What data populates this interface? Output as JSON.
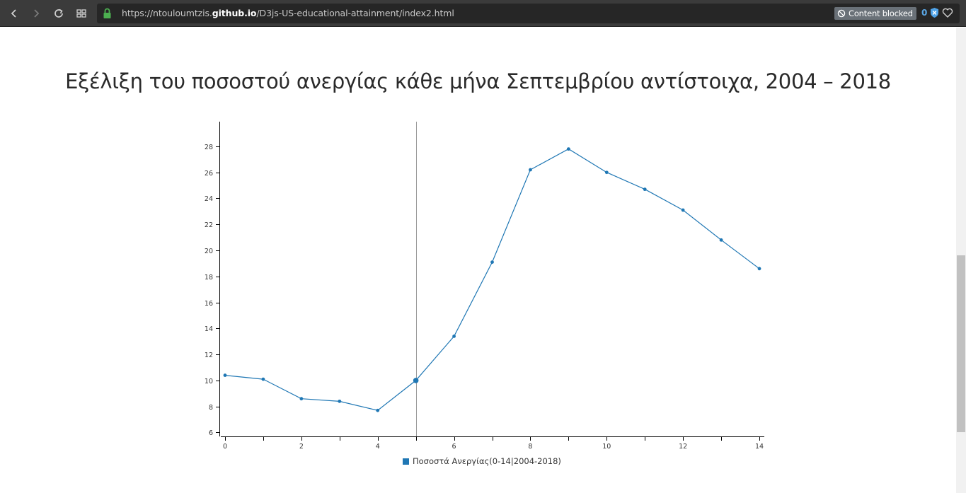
{
  "browser": {
    "url_prefix": "https://ntouloumtzis.",
    "url_host": "github.io",
    "url_path": "/D3js-US-educational-attainment/index2.html",
    "content_blocked_label": "Content blocked",
    "blocked_count": "0",
    "icons": [
      "back-icon",
      "forward-icon",
      "reload-icon",
      "speed-dial-icon",
      "lock-icon",
      "block-icon",
      "shield-icon",
      "heart-icon"
    ]
  },
  "page": {
    "title": "Εξέλιξη του ποσοστού ανεργίας κάθε μήνα Σεπτεμβρίου αντίστοιχα, 2004 – 2018"
  },
  "chart_data": {
    "type": "line",
    "x": [
      0,
      1,
      2,
      3,
      4,
      5,
      6,
      7,
      8,
      9,
      10,
      11,
      12,
      13,
      14
    ],
    "series": [
      {
        "name": "Ποσοστά Ανεργίας(0-14|2004-2018)",
        "values": [
          10.4,
          10.1,
          8.6,
          8.4,
          7.7,
          10.0,
          13.4,
          19.1,
          26.2,
          27.8,
          26.0,
          24.7,
          23.1,
          20.8,
          18.6
        ]
      }
    ],
    "x_ticks": [
      "0",
      "2",
      "4",
      "6",
      "8",
      "10",
      "12",
      "14"
    ],
    "y_ticks": [
      "6",
      "8",
      "10",
      "12",
      "14",
      "16",
      "18",
      "20",
      "22",
      "24",
      "26",
      "28"
    ],
    "xlim": [
      0,
      14
    ],
    "ylim": [
      5.7,
      29.9
    ],
    "highlight_index": 5,
    "color": "#1f77b4",
    "grid": false,
    "legend_position": "bottom-center"
  }
}
